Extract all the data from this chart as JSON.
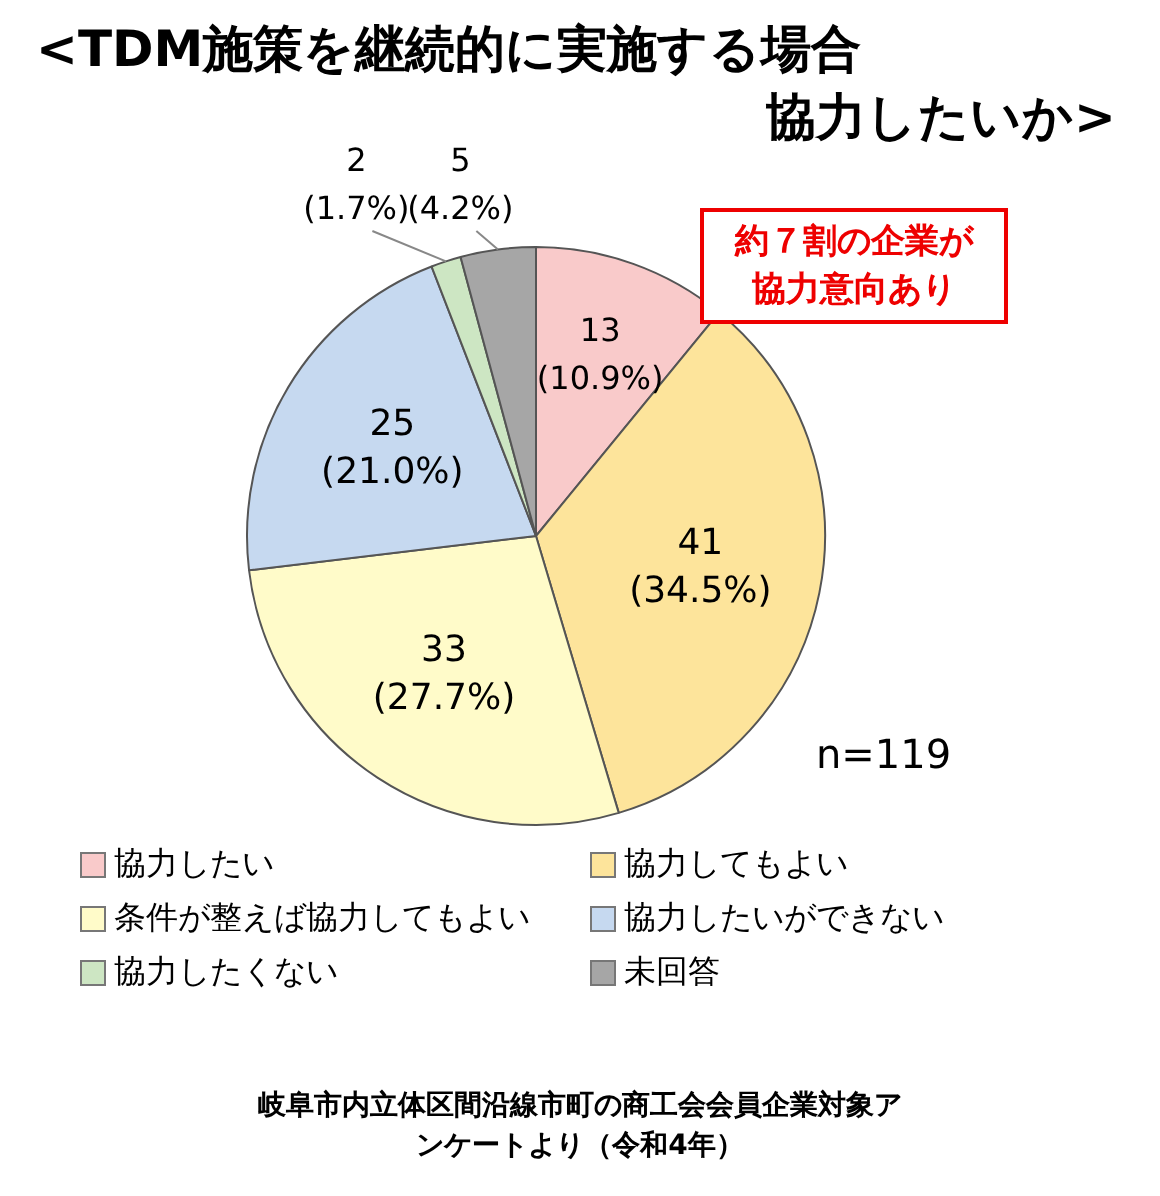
{
  "chart_data": {
    "type": "pie",
    "title": "<TDM施策を継続的に実施する場合協力したいか>",
    "categories": [
      "協力したい",
      "協力してもよい",
      "条件が整えば協力してもよい",
      "協力したいができない",
      "協力したくない",
      "未回答"
    ],
    "values": [
      13,
      41,
      33,
      25,
      2,
      5
    ],
    "colors": [
      "#f9caca",
      "#fde49b",
      "#fffbc9",
      "#c6d9f0",
      "#cde6c3",
      "#a6a6a6"
    ],
    "value_labels": [
      "13\n(10.9%)",
      "41\n(34.5%)",
      "33\n(27.7%)",
      "25\n(21.0%)",
      "2\n(1.7%)",
      "5\n(4.2%)"
    ],
    "legend": "bottom",
    "annotations": [
      "約７割の企業が協力意向あり",
      "n=119",
      "岐阜市内立体区間沿線市町の商工会会員企業対象アンケートより（令和4年）"
    ]
  }
}
